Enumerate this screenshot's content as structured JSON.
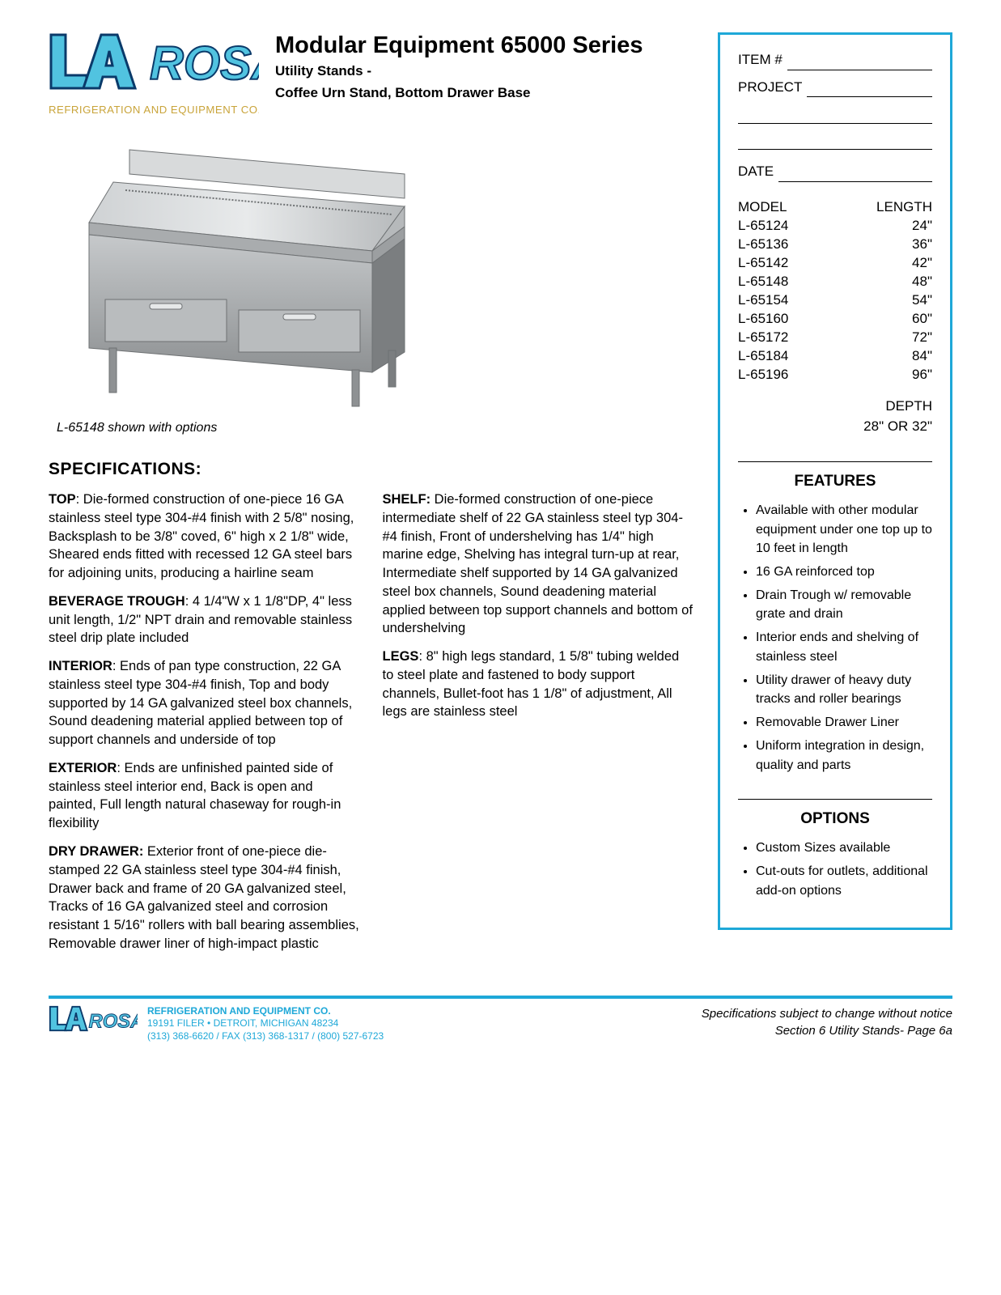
{
  "brand": {
    "logo_main": "LA ROSA",
    "logo_sub": "REFRIGERATION AND EQUIPMENT CO.",
    "colors": {
      "accent": "#1ea8d8",
      "gold": "#c9a43a",
      "text": "#000000",
      "logo_fill": "#51c3e0",
      "logo_outline": "#0a3a6a"
    }
  },
  "header": {
    "series": "Modular Equipment 65000 Series",
    "subtitle_line1": "Utility Stands -",
    "subtitle_line2": "Coffee Urn Stand, Bottom Drawer Base"
  },
  "sidebar": {
    "item_label": "ITEM #",
    "project_label": "PROJECT",
    "date_label": "DATE",
    "model_header": "MODEL",
    "length_header": "LENGTH",
    "models": [
      {
        "model": "L-65124",
        "length": "24\""
      },
      {
        "model": "L-65136",
        "length": "36\""
      },
      {
        "model": "L-65142",
        "length": "42\""
      },
      {
        "model": "L-65148",
        "length": "48\""
      },
      {
        "model": "L-65154",
        "length": "54\""
      },
      {
        "model": "L-65160",
        "length": "60\""
      },
      {
        "model": "L-65172",
        "length": "72\""
      },
      {
        "model": "L-65184",
        "length": "84\""
      },
      {
        "model": "L-65196",
        "length": "96\""
      }
    ],
    "depth_label": "DEPTH",
    "depth_value": "28\" OR 32\"",
    "features_heading": "FEATURES",
    "features": [
      "Available with other modular equipment under one top up to 10 feet in length",
      "16 GA reinforced top",
      "Drain Trough w/ removable grate and drain",
      "Interior ends and shelving of stainless steel",
      "Utility drawer of heavy duty tracks and roller bearings",
      "Removable Drawer Liner",
      "Uniform integration in design, quality and parts"
    ],
    "options_heading": "OPTIONS",
    "options": [
      "Custom Sizes available",
      "Cut-outs for outlets, additional add-on options"
    ]
  },
  "image": {
    "caption": "L-65148 shown with options",
    "metal_light": "#d8dadb",
    "metal_mid": "#a9acae",
    "metal_dark": "#6e7173",
    "metal_deep": "#4a4d4f"
  },
  "specs": {
    "heading": "SPECIFICATIONS:",
    "col1": [
      {
        "label": "TOP",
        "text": ":  Die-formed construction of one-piece 16 GA stainless steel type 304-#4 finish with 2 5/8\" nosing, Backsplash to be 3/8\" coved, 6\" high x 2 1/8\" wide,  Sheared ends fitted with recessed 12 GA steel bars for adjoining units, producing a hairline seam"
      },
      {
        "label": "BEVERAGE TROUGH",
        "text": ":  4 1/4\"W x 1 1/8\"DP, 4\" less unit length, 1/2\" NPT drain and removable stainless steel drip plate included"
      },
      {
        "label": "INTERIOR",
        "text": ":  Ends of pan type construction, 22 GA stainless steel type 304-#4 finish, Top and body supported by 14 GA galvanized steel box channels, Sound deadening material applied between top of support channels and underside of top"
      },
      {
        "label": "EXTERIOR",
        "text": ":  Ends are unfinished painted side of stainless steel interior end, Back is open and painted, Full length natural chaseway for rough-in flexibility"
      },
      {
        "label": "DRY DRAWER:",
        "text": "  Exterior front of one-piece die-stamped 22 GA stainless steel type 304-#4 finish, Drawer back and frame of 20 GA galvanized steel, Tracks of 16 GA galvanized steel and corrosion resistant 1 5/16\" rollers with ball bearing assemblies, Removable drawer liner of high-impact plastic"
      }
    ],
    "col2": [
      {
        "label": "SHELF:",
        "text": "  Die-formed construction of one-piece intermediate shelf of 22 GA stainless steel typ 304-#4 finish, Front of undershelving has 1/4\" high marine edge, Shelving has integral turn-up at rear, Intermediate shelf supported by 14 GA galvanized steel box channels,  Sound deadening material applied between top support channels and bottom of undershelving"
      },
      {
        "label": "LEGS",
        "text": ":  8\" high legs standard, 1 5/8\" tubing welded to steel plate and fastened to body support channels, Bullet-foot has 1 1/8\" of adjustment, All legs are stainless steel"
      }
    ]
  },
  "footer": {
    "co_line1": "REFRIGERATION AND EQUIPMENT CO.",
    "co_line2": "19191 FILER • DETROIT, MICHIGAN  48234",
    "co_line3": "(313) 368-6620 / FAX (313) 368-1317 / (800) 527-6723",
    "right_line1": "Specifications subject to change without notice",
    "right_line2": "Section 6 Utility Stands-  Page 6a"
  }
}
